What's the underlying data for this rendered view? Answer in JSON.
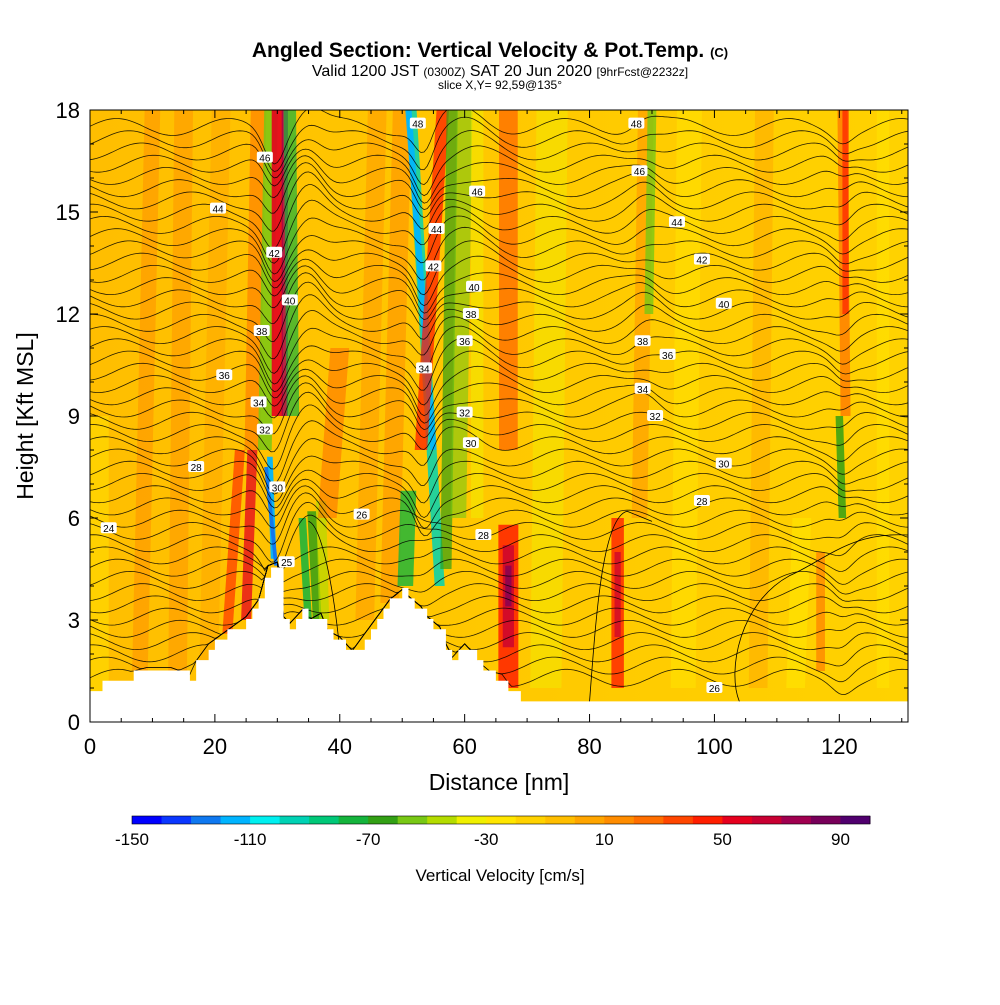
{
  "header": {
    "title": "Angled Section: Vertical Velocity & Pot.Temp.",
    "title_suffix": "(C)",
    "valid_prefix": "Valid 1200 JST",
    "valid_utc": "(0300Z)",
    "valid_date": "SAT 20 Jun 2020",
    "forecast": "[9hrFcst@2232z]",
    "slice": "slice X,Y= 92,59@135°"
  },
  "colorbar": {
    "label": "Vertical Velocity [cm/s]",
    "ticks": [
      "-150",
      "-110",
      "-70",
      "-30",
      "10",
      "50",
      "90"
    ],
    "colors": [
      "#0000ff",
      "#0a37ff",
      "#0f78f0",
      "#00b4ff",
      "#00f0f0",
      "#00d2b4",
      "#00c878",
      "#14b43c",
      "#32a014",
      "#78c814",
      "#b4dc00",
      "#f0f000",
      "#ffe600",
      "#ffd200",
      "#ffbe00",
      "#ffa500",
      "#ff8c00",
      "#ff6e00",
      "#ff4600",
      "#ff1e00",
      "#e6001e",
      "#c80032",
      "#a00050",
      "#78005a",
      "#50006e"
    ]
  },
  "chart_data": {
    "type": "heatmap",
    "xlabel": "Distance [nm]",
    "ylabel": "Height [Kft MSL]",
    "xlim": [
      0,
      131
    ],
    "ylim": [
      0,
      18
    ],
    "x_ticks": [
      "0",
      "20",
      "40",
      "60",
      "80",
      "100",
      "120"
    ],
    "y_ticks": [
      "0",
      "3",
      "6",
      "9",
      "12",
      "15",
      "18"
    ],
    "color_variable": "Vertical Velocity [cm/s]",
    "color_range": [
      -150,
      100
    ],
    "contour_variable": "Pot.Temp. (C)",
    "contour_levels": [
      24,
      25,
      26,
      28,
      30,
      32,
      34,
      36,
      38,
      40,
      42,
      44,
      46,
      48
    ],
    "terrain_profile": {
      "x": [
        0,
        1,
        5,
        9,
        13,
        16,
        17,
        19,
        22,
        25,
        27,
        28.5,
        30,
        31,
        32,
        34,
        35,
        37,
        38,
        40,
        42,
        44,
        46,
        48,
        50,
        51,
        53,
        54,
        56,
        57,
        58,
        60,
        61,
        62,
        64,
        66,
        68,
        70,
        72,
        131
      ],
      "height": [
        0.8,
        1.0,
        1.3,
        1.5,
        1.5,
        1.3,
        1.7,
        2.2,
        2.6,
        3.0,
        3.5,
        4.5,
        4.6,
        3.0,
        2.8,
        3.2,
        2.9,
        3.1,
        2.6,
        2.4,
        2.0,
        2.5,
        3.0,
        3.5,
        3.8,
        3.6,
        3.3,
        3.0,
        2.7,
        2.2,
        1.8,
        2.2,
        2.0,
        1.7,
        1.4,
        1.3,
        0.8,
        0.7,
        0.6,
        0.6
      ]
    },
    "labeled_contours": [
      {
        "value": "24",
        "x": 3,
        "y": 5.7
      },
      {
        "value": "28",
        "x": 17,
        "y": 7.5
      },
      {
        "value": "30",
        "x": 30,
        "y": 6.9
      },
      {
        "value": "32",
        "x": 28,
        "y": 8.6
      },
      {
        "value": "34",
        "x": 27,
        "y": 9.4
      },
      {
        "value": "36",
        "x": 21.5,
        "y": 10.2
      },
      {
        "value": "38",
        "x": 27.5,
        "y": 11.5
      },
      {
        "value": "40",
        "x": 32,
        "y": 12.4
      },
      {
        "value": "42",
        "x": 29.5,
        "y": 13.8
      },
      {
        "value": "44",
        "x": 20.5,
        "y": 15.1
      },
      {
        "value": "46",
        "x": 28,
        "y": 16.6
      },
      {
        "value": "48",
        "x": 52.5,
        "y": 17.6
      },
      {
        "value": "26",
        "x": 43.5,
        "y": 6.1
      },
      {
        "value": "28",
        "x": 63,
        "y": 5.5
      },
      {
        "value": "25",
        "x": 31.5,
        "y": 4.7
      },
      {
        "value": "30",
        "x": 61,
        "y": 8.2
      },
      {
        "value": "32",
        "x": 60,
        "y": 9.1
      },
      {
        "value": "34",
        "x": 53.5,
        "y": 10.4
      },
      {
        "value": "36",
        "x": 60,
        "y": 11.2
      },
      {
        "value": "38",
        "x": 61,
        "y": 12.0
      },
      {
        "value": "40",
        "x": 61.5,
        "y": 12.8
      },
      {
        "value": "42",
        "x": 55,
        "y": 13.4
      },
      {
        "value": "44",
        "x": 55.5,
        "y": 14.5
      },
      {
        "value": "46",
        "x": 62,
        "y": 15.6
      },
      {
        "value": "48",
        "x": 87.5,
        "y": 17.6
      },
      {
        "value": "46",
        "x": 88,
        "y": 16.2
      },
      {
        "value": "44",
        "x": 94,
        "y": 14.7
      },
      {
        "value": "42",
        "x": 98,
        "y": 13.6
      },
      {
        "value": "40",
        "x": 101.5,
        "y": 12.3
      },
      {
        "value": "38",
        "x": 88.5,
        "y": 11.2
      },
      {
        "value": "36",
        "x": 92.5,
        "y": 10.8
      },
      {
        "value": "34",
        "x": 88.5,
        "y": 9.8
      },
      {
        "value": "32",
        "x": 90.5,
        "y": 9.0
      },
      {
        "value": "30",
        "x": 101.5,
        "y": 7.6
      },
      {
        "value": "28",
        "x": 98,
        "y": 6.5
      },
      {
        "value": "26",
        "x": 100,
        "y": 1.0
      }
    ]
  }
}
